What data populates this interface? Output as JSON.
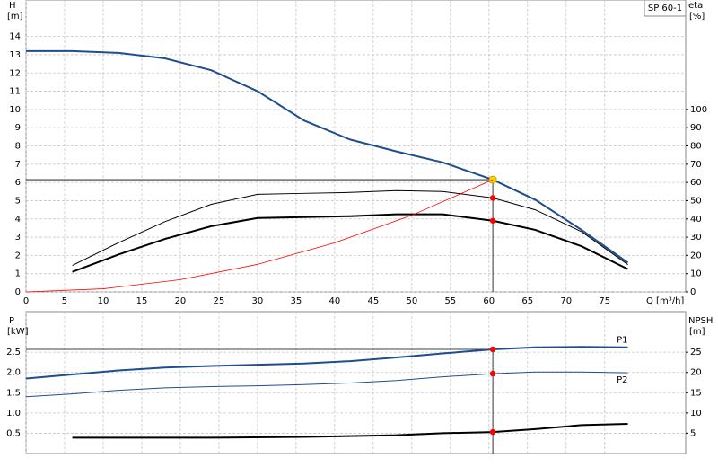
{
  "chart_data": [
    {
      "type": "line",
      "legend_label": "SP 60-1",
      "y_label": "H",
      "y_unit": "[m]",
      "y2_label": "eta",
      "y2_unit": "[%]",
      "x_label": "Q [m³/h]",
      "xlim": [
        0,
        85.5
      ],
      "xticks": [
        0,
        5,
        10,
        15,
        20,
        25,
        30,
        35,
        40,
        45,
        50,
        55,
        60,
        65,
        70,
        75
      ],
      "ylim": [
        0,
        16
      ],
      "yticks": [
        0,
        1,
        2,
        3,
        4,
        5,
        6,
        7,
        8,
        9,
        10,
        11,
        12,
        13,
        14
      ],
      "y2lim": [
        0,
        160
      ],
      "y2ticks": [
        0,
        10,
        20,
        30,
        40,
        50,
        60,
        70,
        80,
        90,
        100
      ],
      "grid": true,
      "point_x": 60.5,
      "series": [
        {
          "color": "#1f4e8c",
          "width": 2,
          "x": [
            0,
            6,
            12,
            18,
            24,
            30,
            36,
            42,
            48,
            54,
            60.5,
            66,
            72,
            78
          ],
          "values": [
            13.2,
            13.2,
            13.1,
            12.8,
            12.15,
            11,
            9.4,
            8.35,
            7.7,
            7.1,
            6.15,
            5.05,
            3.4,
            1.6
          ],
          "point": 6.15,
          "point_color": "#ffd700"
        },
        {
          "color": "#000000",
          "width": 1,
          "axis": "y2",
          "x": [
            6,
            12,
            18,
            24,
            30,
            36,
            42,
            48,
            54,
            60.5,
            66,
            72,
            78
          ],
          "values": [
            14.5,
            27,
            38.5,
            48,
            53.5,
            54,
            54.5,
            55.5,
            55,
            51.5,
            45,
            33,
            15
          ],
          "point": 51.5,
          "point_color": "#ff0000"
        },
        {
          "color": "#000000",
          "width": 2,
          "axis": "y2",
          "x": [
            6,
            12,
            18,
            24,
            30,
            36,
            42,
            48,
            54,
            60.5,
            66,
            72,
            78
          ],
          "values": [
            11,
            20.5,
            29,
            36,
            40.5,
            41,
            41.5,
            42.5,
            42.5,
            39,
            34,
            25,
            12.5
          ],
          "point": 39,
          "point_color": "#ff0000"
        },
        {
          "color": "#ff0000",
          "width": 0.8,
          "x": [
            0,
            10,
            20,
            30,
            40,
            50,
            60.5
          ],
          "values": [
            0,
            0.17,
            0.67,
            1.51,
            2.69,
            4.2,
            6.15
          ]
        }
      ]
    },
    {
      "type": "line",
      "y_label": "P",
      "y_unit": "[kW]",
      "y2_label": "NPSH",
      "y2_unit": "[m]",
      "xlim": [
        0,
        85.5
      ],
      "ylim": [
        0,
        3.5
      ],
      "yticks": [
        0.5,
        {
          "value": 1,
          "label": "1.0"
        },
        1.5,
        {
          "value": 2,
          "label": "2.0"
        },
        2.5
      ],
      "y2lim": [
        0,
        35
      ],
      "y2ticks": [
        5,
        10,
        15,
        20,
        25
      ],
      "grid": true,
      "point_x": 60.5,
      "series": [
        {
          "name": "P1",
          "color": "#1f4e8c",
          "width": 2,
          "x": [
            0,
            6,
            12,
            18,
            24,
            30,
            36,
            42,
            48,
            54,
            60.5,
            66,
            72,
            78
          ],
          "values": [
            1.85,
            1.95,
            2.05,
            2.12,
            2.16,
            2.19,
            2.22,
            2.28,
            2.37,
            2.47,
            2.57,
            2.62,
            2.63,
            2.62
          ],
          "point": 2.57,
          "point_color": "#ff0000"
        },
        {
          "name": "P2",
          "color": "#1f4e8c",
          "width": 1,
          "x": [
            0,
            6,
            12,
            18,
            24,
            30,
            36,
            42,
            48,
            54,
            60.5,
            66,
            72,
            78
          ],
          "values": [
            1.4,
            1.47,
            1.56,
            1.62,
            1.65,
            1.67,
            1.7,
            1.74,
            1.8,
            1.89,
            1.97,
            2.01,
            2.01,
            1.99
          ],
          "point": 1.97,
          "point_color": "#ff0000"
        },
        {
          "color": "#000000",
          "width": 2,
          "axis": "y2",
          "x": [
            6,
            12,
            24,
            36,
            48,
            54,
            60.5,
            66,
            72,
            78
          ],
          "values": [
            3.9,
            3.9,
            3.9,
            4.1,
            4.5,
            5,
            5.3,
            6,
            7,
            7.3
          ],
          "point": 5.3,
          "point_color": "#ff0000"
        }
      ]
    }
  ]
}
